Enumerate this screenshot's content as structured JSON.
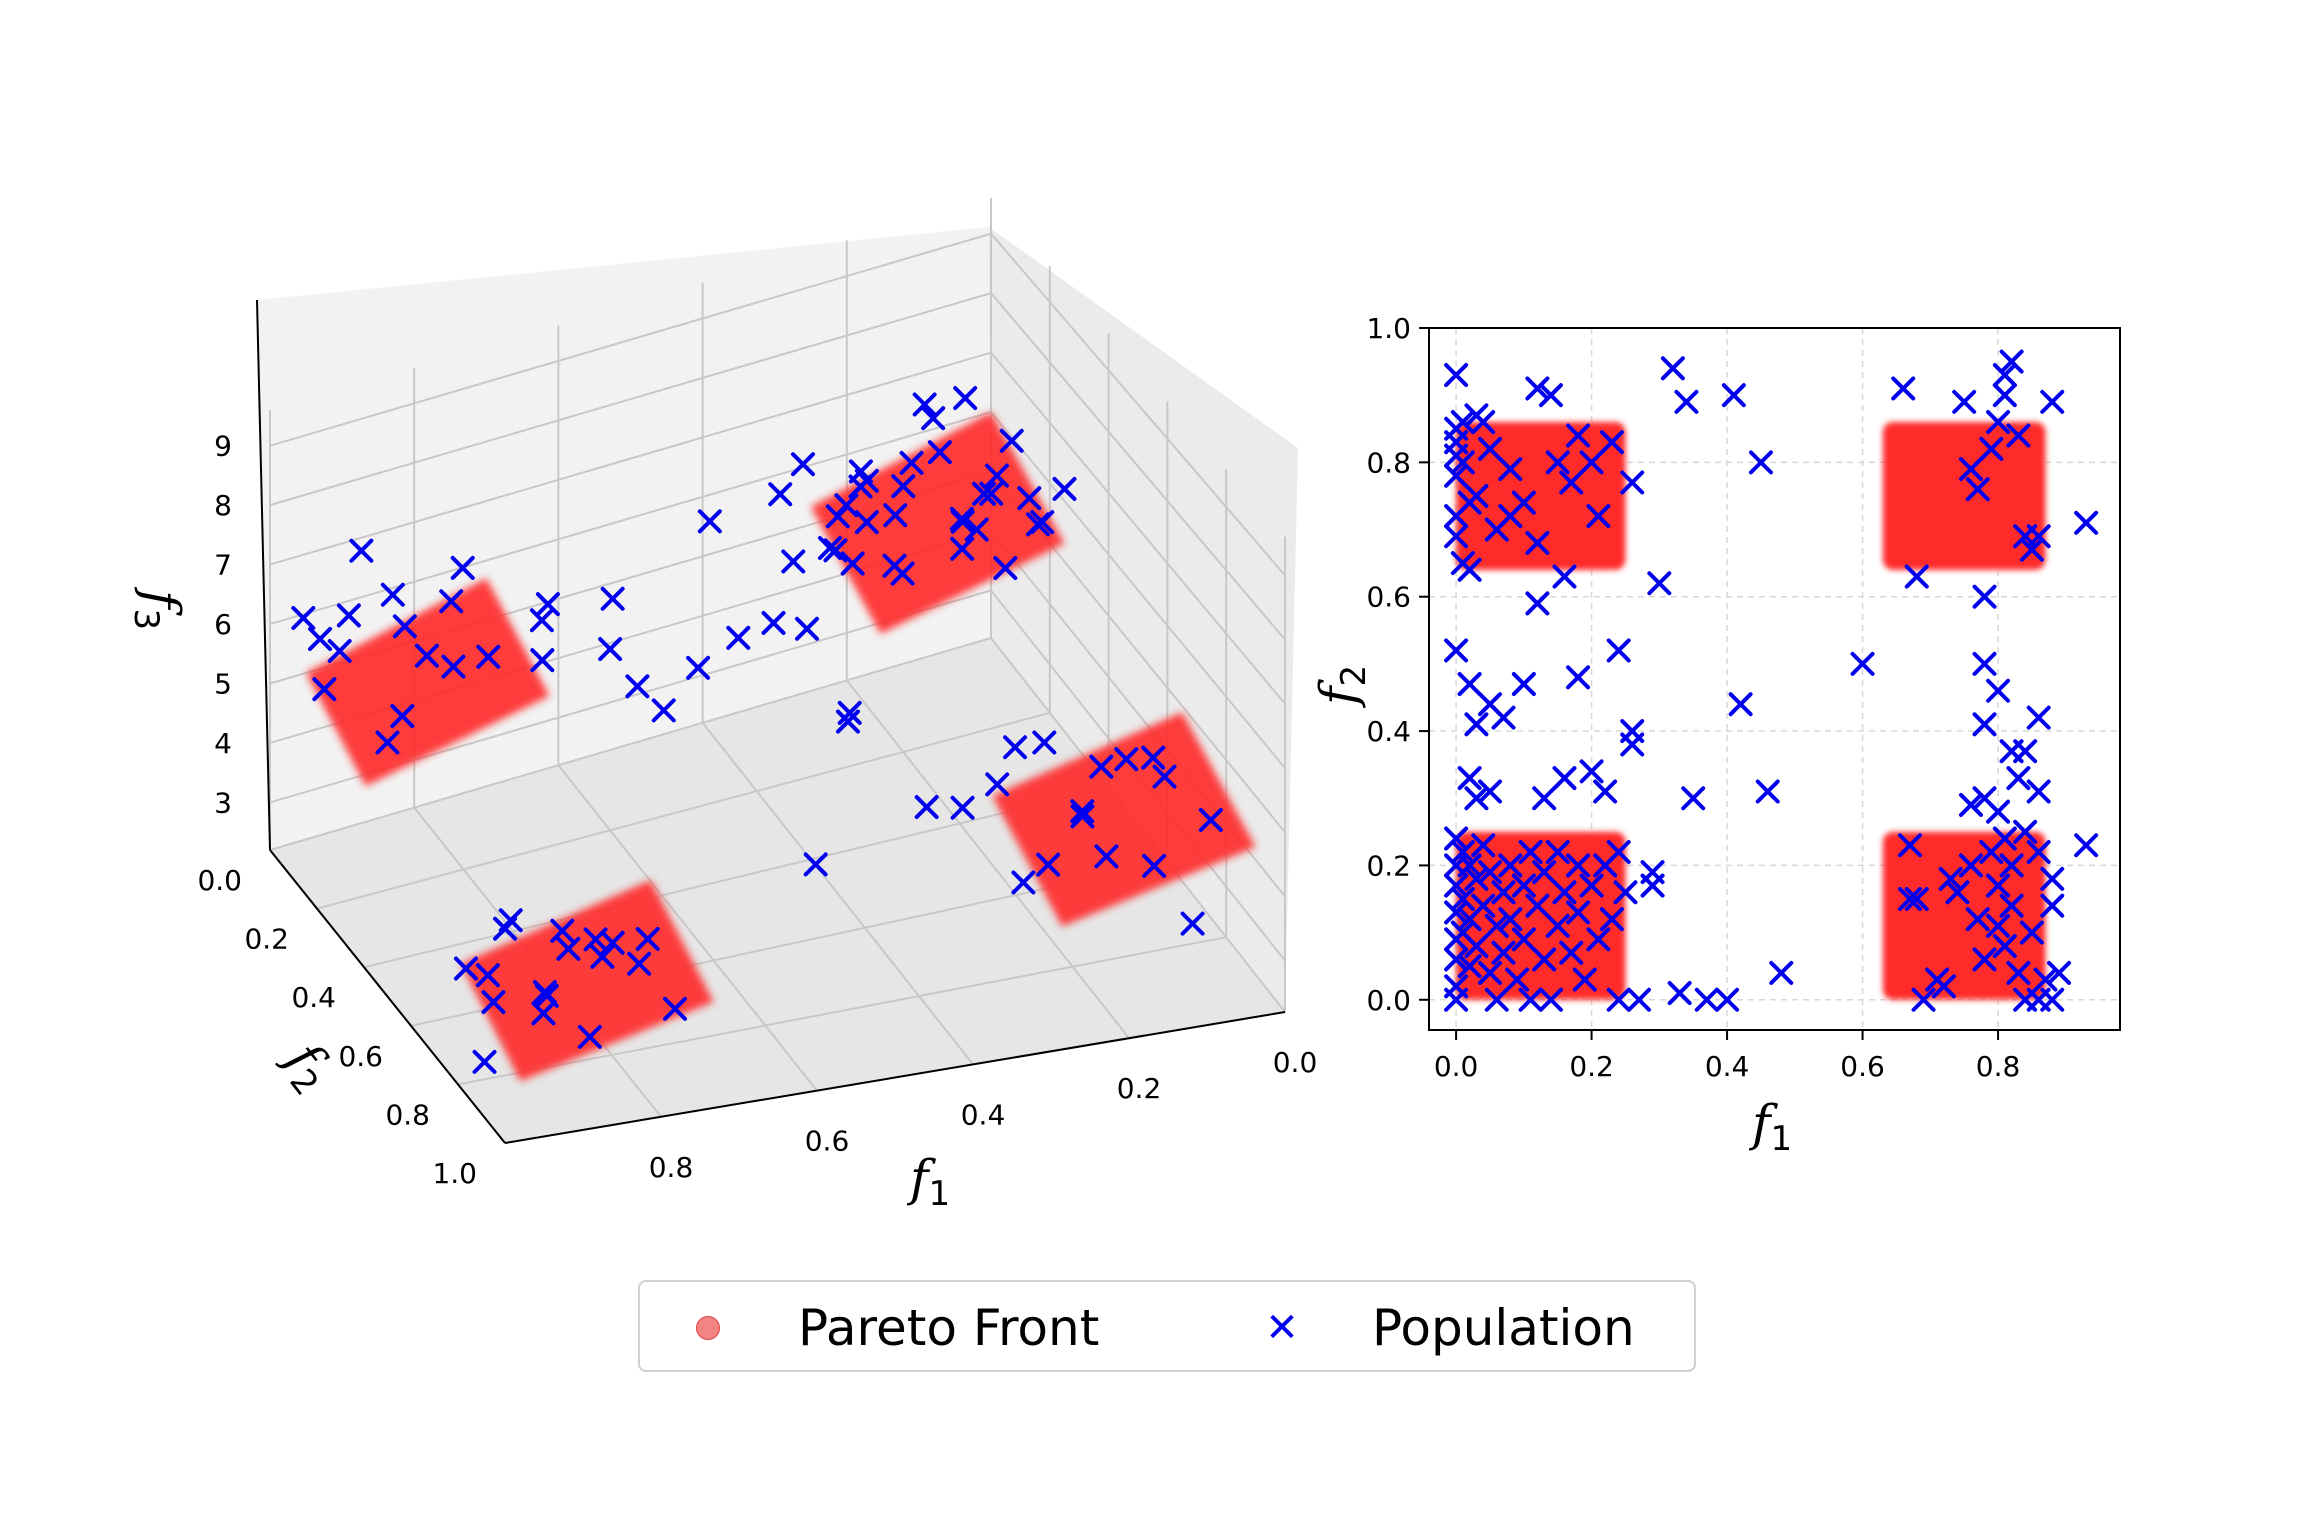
{
  "colors": {
    "pareto": "#ff2a2a",
    "population": "#0000ee",
    "pane": "#f2f2f2",
    "grid": "#c8c8c8"
  },
  "chart_data": [
    {
      "type": "scatter3d",
      "title": "",
      "xlabel": "f",
      "xlabel_sub": "1",
      "ylabel": "f",
      "ylabel_sub": "2",
      "zlabel": "f",
      "zlabel_sub": "3",
      "x_ticks": [
        "0.0",
        "0.2",
        "0.4",
        "0.6",
        "0.8"
      ],
      "y_ticks": [
        "0.0",
        "0.2",
        "0.4",
        "0.6",
        "0.8",
        "1.0"
      ],
      "z_ticks": [
        "3",
        "4",
        "5",
        "6",
        "7",
        "8",
        "9"
      ],
      "xlim": [
        0,
        1
      ],
      "ylim": [
        0,
        1
      ],
      "zlim": [
        2.2,
        9.6
      ],
      "pareto_regions": [
        {
          "f1": [
            0.0,
            0.25
          ],
          "f2": [
            0.0,
            0.25
          ],
          "f3": [
            4.6,
            6.0
          ]
        },
        {
          "f1": [
            0.7,
            0.95
          ],
          "f2": [
            0.0,
            0.25
          ],
          "f3": [
            4.3,
            5.7
          ]
        },
        {
          "f1": [
            0.0,
            0.25
          ],
          "f2": [
            0.65,
            0.9
          ],
          "f3": [
            3.5,
            4.9
          ]
        },
        {
          "f1": [
            0.7,
            0.95
          ],
          "f2": [
            0.65,
            0.9
          ],
          "f3": [
            2.6,
            4.0
          ]
        }
      ],
      "population_points": [
        [
          0.92,
          0.74,
          4.2
        ],
        [
          0.8,
          0.6,
          3.2
        ],
        [
          0.86,
          0.9,
          3.1
        ],
        [
          0.74,
          0.76,
          3.7
        ],
        [
          0.9,
          0.85,
          3.6
        ],
        [
          0.77,
          0.67,
          3.05
        ],
        [
          0.96,
          0.82,
          3.5
        ],
        [
          0.79,
          0.88,
          4.0
        ],
        [
          0.99,
          0.88,
          2.9
        ],
        [
          0.93,
          0.7,
          3.3
        ],
        [
          0.89,
          0.81,
          3.45
        ],
        [
          0.74,
          0.62,
          2.95
        ],
        [
          0.94,
          0.64,
          3.15
        ],
        [
          0.84,
          0.86,
          4.4
        ],
        [
          0.85,
          0.78,
          3.9
        ],
        [
          0.92,
          0.9,
          3.6
        ],
        [
          0.9,
          0.7,
          4.1
        ],
        [
          0.75,
          0.9,
          3.3
        ],
        [
          0.1,
          0.72,
          4.8
        ],
        [
          0.18,
          0.78,
          4.5
        ],
        [
          0.2,
          0.7,
          5.2
        ],
        [
          0.05,
          0.72,
          4.4
        ],
        [
          0.25,
          0.85,
          4.2
        ],
        [
          0.28,
          0.75,
          5.0
        ],
        [
          0.15,
          0.7,
          3.9
        ],
        [
          0.12,
          0.87,
          4.0
        ],
        [
          0.2,
          0.92,
          4.6
        ],
        [
          0.08,
          0.76,
          5.0
        ],
        [
          0.3,
          0.9,
          4.3
        ],
        [
          0.02,
          0.8,
          4.1
        ],
        [
          0.1,
          0.95,
          3.5
        ],
        [
          0.22,
          0.65,
          4.9
        ],
        [
          0.3,
          0.68,
          4.3
        ],
        [
          0.17,
          0.82,
          5.4
        ],
        [
          0.92,
          0.05,
          5.5
        ],
        [
          0.85,
          0.2,
          5.9
        ],
        [
          0.97,
          0.12,
          6.2
        ],
        [
          0.9,
          0.25,
          5.3
        ],
        [
          0.78,
          0.1,
          5.0
        ],
        [
          0.95,
          0.18,
          6.8
        ],
        [
          0.8,
          0.15,
          6.4
        ],
        [
          0.88,
          0.02,
          6.9
        ],
        [
          0.99,
          0.2,
          5.8
        ],
        [
          0.83,
          0.05,
          5.6
        ],
        [
          0.7,
          0.22,
          6.1
        ],
        [
          0.93,
          0.28,
          5.1
        ],
        [
          0.75,
          0.05,
          6.3
        ],
        [
          0.87,
          0.12,
          6.6
        ],
        [
          0.8,
          0.3,
          6.2
        ],
        [
          0.65,
          0.1,
          5.6
        ],
        [
          0.98,
          0.08,
          6.4
        ],
        [
          0.72,
          0.28,
          5.8
        ],
        [
          0.05,
          0.1,
          5.4
        ],
        [
          0.12,
          0.2,
          5.8
        ],
        [
          0.2,
          0.05,
          6.0
        ],
        [
          0.08,
          0.22,
          6.5
        ],
        [
          0.25,
          0.15,
          5.2
        ],
        [
          0.02,
          0.05,
          5.0
        ],
        [
          0.15,
          0.28,
          6.3
        ],
        [
          0.18,
          0.12,
          5.6
        ],
        [
          0.3,
          0.2,
          5.9
        ],
        [
          0.1,
          0.02,
          6.6
        ],
        [
          0.05,
          0.3,
          6.1
        ],
        [
          0.22,
          0.25,
          5.5
        ],
        [
          0.28,
          0.05,
          6.4
        ],
        [
          0.12,
          0.1,
          6.9
        ],
        [
          0.02,
          0.18,
          5.7
        ],
        [
          0.32,
          0.12,
          5.3
        ],
        [
          0.25,
          0.3,
          6.0
        ],
        [
          0.08,
          0.15,
          5.2
        ],
        [
          0.18,
          0.02,
          5.6
        ],
        [
          0.0,
          0.25,
          6.2
        ],
        [
          0.35,
          0.25,
          5.0
        ],
        [
          0.28,
          0.28,
          6.7
        ],
        [
          0.06,
          0.06,
          6.8
        ],
        [
          0.15,
          0.2,
          7.0
        ],
        [
          0.22,
          0.1,
          6.1
        ],
        [
          0.1,
          0.3,
          5.5
        ],
        [
          0.3,
          0.02,
          5.8
        ],
        [
          0.02,
          0.12,
          6.3
        ],
        [
          0.2,
          0.2,
          6.6
        ],
        [
          0.13,
          0.05,
          5.9
        ],
        [
          0.27,
          0.18,
          6.4
        ],
        [
          0.04,
          0.26,
          5.8
        ],
        [
          0.17,
          0.33,
          6.2
        ],
        [
          0.33,
          0.3,
          6.5
        ],
        [
          0.5,
          0.3,
          7.5
        ],
        [
          0.4,
          0.5,
          8.3
        ],
        [
          0.55,
          0.55,
          7.0
        ],
        [
          0.45,
          0.4,
          6.2
        ],
        [
          0.6,
          0.2,
          5.2
        ],
        [
          0.35,
          0.4,
          4.3
        ],
        [
          0.5,
          0.7,
          4.0
        ],
        [
          0.65,
          0.45,
          6.0
        ],
        [
          0.42,
          0.6,
          5.7
        ],
        [
          0.48,
          0.2,
          4.5
        ],
        [
          0.7,
          0.5,
          7.8
        ],
        [
          0.3,
          0.55,
          3.6
        ],
        [
          0.58,
          0.35,
          4.9
        ]
      ]
    },
    {
      "type": "scatter",
      "title": "",
      "xlabel": "f",
      "xlabel_sub": "1",
      "ylabel": "f",
      "ylabel_sub": "2",
      "xlim": [
        -0.04,
        0.98
      ],
      "ylim": [
        -0.045,
        1.0
      ],
      "x_ticks": [
        "0.0",
        "0.2",
        "0.4",
        "0.6",
        "0.8"
      ],
      "y_ticks": [
        "0.0",
        "0.2",
        "0.4",
        "0.6",
        "0.8",
        "1.0"
      ],
      "grid": true,
      "pareto_regions": [
        {
          "f1": [
            0.0,
            0.25
          ],
          "f2": [
            0.0,
            0.25
          ]
        },
        {
          "f1": [
            0.63,
            0.87
          ],
          "f2": [
            0.0,
            0.25
          ]
        },
        {
          "f1": [
            0.0,
            0.25
          ],
          "f2": [
            0.64,
            0.86
          ]
        },
        {
          "f1": [
            0.63,
            0.87
          ],
          "f2": [
            0.64,
            0.86
          ]
        }
      ],
      "population_points": [
        [
          0.0,
          0.93
        ],
        [
          0.0,
          0.85
        ],
        [
          0.0,
          0.83
        ],
        [
          0.0,
          0.81
        ],
        [
          0.0,
          0.78
        ],
        [
          0.0,
          0.72
        ],
        [
          0.0,
          0.69
        ],
        [
          0.01,
          0.86
        ],
        [
          0.01,
          0.8
        ],
        [
          0.01,
          0.65
        ],
        [
          0.02,
          0.74
        ],
        [
          0.02,
          0.64
        ],
        [
          0.03,
          0.87
        ],
        [
          0.03,
          0.75
        ],
        [
          0.04,
          0.86
        ],
        [
          0.05,
          0.82
        ],
        [
          0.06,
          0.7
        ],
        [
          0.08,
          0.72
        ],
        [
          0.08,
          0.79
        ],
        [
          0.1,
          0.74
        ],
        [
          0.12,
          0.91
        ],
        [
          0.12,
          0.68
        ],
        [
          0.14,
          0.9
        ],
        [
          0.15,
          0.8
        ],
        [
          0.16,
          0.63
        ],
        [
          0.17,
          0.77
        ],
        [
          0.18,
          0.84
        ],
        [
          0.2,
          0.8
        ],
        [
          0.21,
          0.72
        ],
        [
          0.23,
          0.83
        ],
        [
          0.26,
          0.77
        ],
        [
          0.12,
          0.59
        ],
        [
          0.32,
          0.94
        ],
        [
          0.34,
          0.89
        ],
        [
          0.41,
          0.9
        ],
        [
          0.45,
          0.8
        ],
        [
          0.3,
          0.62
        ],
        [
          0.66,
          0.91
        ],
        [
          0.68,
          0.63
        ],
        [
          0.75,
          0.89
        ],
        [
          0.76,
          0.79
        ],
        [
          0.77,
          0.76
        ],
        [
          0.78,
          0.6
        ],
        [
          0.79,
          0.82
        ],
        [
          0.8,
          0.86
        ],
        [
          0.81,
          0.9
        ],
        [
          0.81,
          0.93
        ],
        [
          0.82,
          0.95
        ],
        [
          0.83,
          0.84
        ],
        [
          0.84,
          0.69
        ],
        [
          0.85,
          0.67
        ],
        [
          0.86,
          0.69
        ],
        [
          0.88,
          0.89
        ],
        [
          0.93,
          0.71
        ],
        [
          0.0,
          0.52
        ],
        [
          0.02,
          0.47
        ],
        [
          0.03,
          0.41
        ],
        [
          0.02,
          0.33
        ],
        [
          0.03,
          0.3
        ],
        [
          0.05,
          0.44
        ],
        [
          0.05,
          0.31
        ],
        [
          0.07,
          0.42
        ],
        [
          0.1,
          0.47
        ],
        [
          0.13,
          0.3
        ],
        [
          0.16,
          0.33
        ],
        [
          0.18,
          0.48
        ],
        [
          0.2,
          0.34
        ],
        [
          0.22,
          0.31
        ],
        [
          0.24,
          0.52
        ],
        [
          0.26,
          0.38
        ],
        [
          0.26,
          0.4
        ],
        [
          0.35,
          0.3
        ],
        [
          0.42,
          0.44
        ],
        [
          0.46,
          0.31
        ],
        [
          0.6,
          0.5
        ],
        [
          0.78,
          0.5
        ],
        [
          0.8,
          0.46
        ],
        [
          0.78,
          0.41
        ],
        [
          0.82,
          0.37
        ],
        [
          0.83,
          0.33
        ],
        [
          0.84,
          0.37
        ],
        [
          0.86,
          0.31
        ],
        [
          0.86,
          0.42
        ],
        [
          0.76,
          0.29
        ],
        [
          0.78,
          0.3
        ],
        [
          0.8,
          0.28
        ],
        [
          0.0,
          0.24
        ],
        [
          0.0,
          0.2
        ],
        [
          0.0,
          0.17
        ],
        [
          0.0,
          0.13
        ],
        [
          0.0,
          0.09
        ],
        [
          0.0,
          0.06
        ],
        [
          0.0,
          0.02
        ],
        [
          0.0,
          0.0
        ],
        [
          0.01,
          0.22
        ],
        [
          0.01,
          0.15
        ],
        [
          0.01,
          0.1
        ],
        [
          0.02,
          0.2
        ],
        [
          0.02,
          0.12
        ],
        [
          0.02,
          0.05
        ],
        [
          0.03,
          0.18
        ],
        [
          0.03,
          0.08
        ],
        [
          0.04,
          0.23
        ],
        [
          0.04,
          0.14
        ],
        [
          0.05,
          0.19
        ],
        [
          0.05,
          0.04
        ],
        [
          0.06,
          0.11
        ],
        [
          0.06,
          0.0
        ],
        [
          0.07,
          0.16
        ],
        [
          0.07,
          0.07
        ],
        [
          0.08,
          0.2
        ],
        [
          0.08,
          0.12
        ],
        [
          0.09,
          0.03
        ],
        [
          0.1,
          0.17
        ],
        [
          0.1,
          0.09
        ],
        [
          0.11,
          0.22
        ],
        [
          0.11,
          0.0
        ],
        [
          0.12,
          0.14
        ],
        [
          0.13,
          0.06
        ],
        [
          0.13,
          0.19
        ],
        [
          0.14,
          0.0
        ],
        [
          0.15,
          0.22
        ],
        [
          0.15,
          0.11
        ],
        [
          0.16,
          0.16
        ],
        [
          0.17,
          0.07
        ],
        [
          0.18,
          0.2
        ],
        [
          0.18,
          0.13
        ],
        [
          0.19,
          0.03
        ],
        [
          0.2,
          0.17
        ],
        [
          0.21,
          0.09
        ],
        [
          0.22,
          0.2
        ],
        [
          0.23,
          0.12
        ],
        [
          0.24,
          0.22
        ],
        [
          0.24,
          0.0
        ],
        [
          0.25,
          0.16
        ],
        [
          0.27,
          0.0
        ],
        [
          0.29,
          0.17
        ],
        [
          0.29,
          0.19
        ],
        [
          0.33,
          0.01
        ],
        [
          0.37,
          0.0
        ],
        [
          0.4,
          0.0
        ],
        [
          0.48,
          0.04
        ],
        [
          0.67,
          0.23
        ],
        [
          0.67,
          0.15
        ],
        [
          0.68,
          0.15
        ],
        [
          0.69,
          0.0
        ],
        [
          0.71,
          0.03
        ],
        [
          0.72,
          0.02
        ],
        [
          0.73,
          0.18
        ],
        [
          0.74,
          0.16
        ],
        [
          0.76,
          0.2
        ],
        [
          0.77,
          0.12
        ],
        [
          0.78,
          0.06
        ],
        [
          0.79,
          0.22
        ],
        [
          0.8,
          0.17
        ],
        [
          0.8,
          0.11
        ],
        [
          0.81,
          0.08
        ],
        [
          0.81,
          0.24
        ],
        [
          0.82,
          0.14
        ],
        [
          0.82,
          0.2
        ],
        [
          0.83,
          0.04
        ],
        [
          0.84,
          0.25
        ],
        [
          0.84,
          0.0
        ],
        [
          0.85,
          0.1
        ],
        [
          0.86,
          0.22
        ],
        [
          0.86,
          0.0
        ],
        [
          0.87,
          0.03
        ],
        [
          0.88,
          0.0
        ],
        [
          0.88,
          0.14
        ],
        [
          0.88,
          0.18
        ],
        [
          0.89,
          0.04
        ],
        [
          0.93,
          0.23
        ]
      ]
    }
  ],
  "legend": {
    "items": [
      {
        "label": "Pareto Front",
        "marker": "circle"
      },
      {
        "label": "Population",
        "marker": "x"
      }
    ]
  }
}
